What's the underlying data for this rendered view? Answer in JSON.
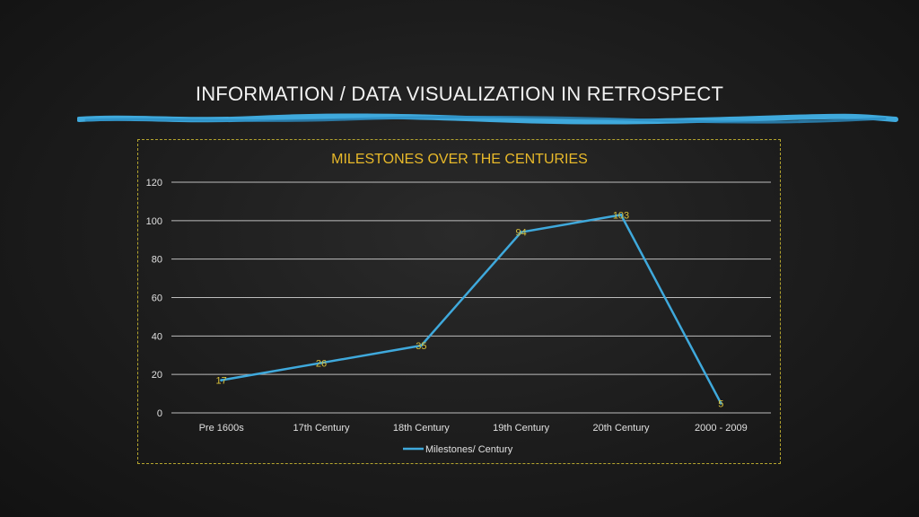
{
  "slide": {
    "title": "INFORMATION / DATA VISUALIZATION IN RETROSPECT"
  },
  "colors": {
    "background": "#1c1c1c",
    "accent": "#3fa9dc",
    "gold": "#e8b92a",
    "grid": "#d9d9d9"
  },
  "chart_data": {
    "type": "line",
    "title": "MILESTONES OVER THE CENTURIES",
    "categories": [
      "Pre 1600s",
      "17th Century",
      "18th Century",
      "19th Century",
      "20th Century",
      "2000 - 2009"
    ],
    "series": [
      {
        "name": "Milestones/ Century",
        "values": [
          17,
          26,
          35,
          94,
          103,
          5
        ]
      }
    ],
    "ylim": [
      0,
      120
    ],
    "yticks": [
      0,
      20,
      40,
      60,
      80,
      100,
      120
    ],
    "grid": true,
    "legend": "bottom",
    "data_labels": true
  }
}
